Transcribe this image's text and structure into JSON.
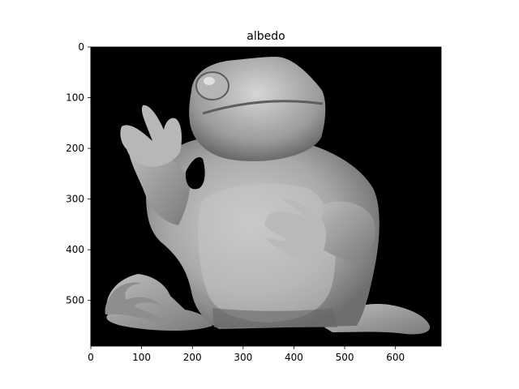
{
  "chart_data": {
    "type": "image",
    "title": "albedo",
    "xlabel": "",
    "ylabel": "",
    "xlim": [
      0,
      690
    ],
    "ylim": [
      590,
      0
    ],
    "xticks": [
      0,
      100,
      200,
      300,
      400,
      500,
      600
    ],
    "yticks": [
      0,
      100,
      200,
      300,
      400,
      500
    ],
    "image_subject": "grayscale albedo map of a sitting frog figurine on black background",
    "colormap": "gray"
  },
  "colors": {
    "background": "#000000",
    "frog_light": "#d9d9d9",
    "frog_mid": "#9a9a9a",
    "frog_dark": "#555555"
  }
}
